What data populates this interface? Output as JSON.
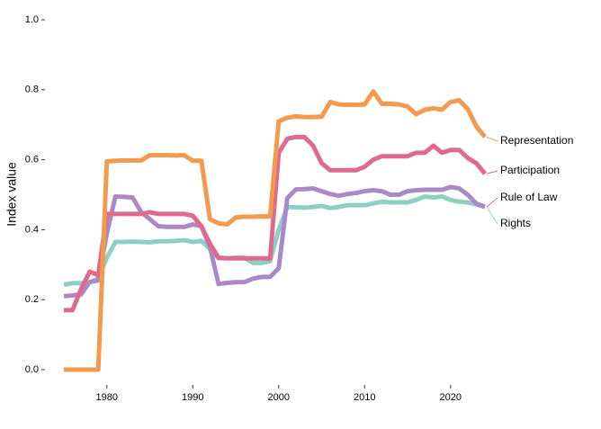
{
  "chart_data": {
    "type": "line",
    "y_label": "Index value",
    "x": [
      1975,
      1976,
      1977,
      1978,
      1979,
      1980,
      1981,
      1982,
      1983,
      1984,
      1985,
      1986,
      1987,
      1988,
      1989,
      1990,
      1991,
      1992,
      1993,
      1994,
      1995,
      1996,
      1997,
      1998,
      1999,
      2000,
      2001,
      2002,
      2003,
      2004,
      2005,
      2006,
      2007,
      2008,
      2009,
      2010,
      2011,
      2012,
      2013,
      2014,
      2015,
      2016,
      2017,
      2018,
      2019,
      2020,
      2021,
      2022,
      2023,
      2024
    ],
    "series": [
      {
        "name": "Representation",
        "color": "#f39a4f",
        "values": [
          0,
          0,
          0,
          0,
          0,
          0.595,
          0.597,
          0.598,
          0.598,
          0.598,
          0.613,
          0.613,
          0.613,
          0.612,
          0.613,
          0.597,
          0.597,
          0.43,
          0.418,
          0.415,
          0.435,
          0.437,
          0.437,
          0.438,
          0.438,
          0.71,
          0.72,
          0.724,
          0.722,
          0.722,
          0.723,
          0.765,
          0.758,
          0.757,
          0.757,
          0.758,
          0.795,
          0.76,
          0.76,
          0.758,
          0.752,
          0.73,
          0.743,
          0.747,
          0.743,
          0.765,
          0.77,
          0.745,
          0.695,
          0.665
        ]
      },
      {
        "name": "Participation",
        "color": "#df6a8d",
        "values": [
          0.17,
          0.17,
          0.23,
          0.28,
          0.27,
          0.445,
          0.445,
          0.445,
          0.445,
          0.445,
          0.45,
          0.445,
          0.445,
          0.445,
          0.445,
          0.44,
          0.41,
          0.36,
          0.32,
          0.318,
          0.318,
          0.318,
          0.318,
          0.318,
          0.318,
          0.62,
          0.66,
          0.665,
          0.665,
          0.64,
          0.59,
          0.57,
          0.57,
          0.57,
          0.57,
          0.58,
          0.6,
          0.61,
          0.61,
          0.61,
          0.61,
          0.62,
          0.62,
          0.64,
          0.62,
          0.628,
          0.628,
          0.605,
          0.59,
          0.56
        ]
      },
      {
        "name": "Rule of Law",
        "color": "#a98ac6",
        "values": [
          0.21,
          0.212,
          0.215,
          0.25,
          0.255,
          0.39,
          0.495,
          0.494,
          0.492,
          0.45,
          0.43,
          0.41,
          0.408,
          0.408,
          0.408,
          0.415,
          0.41,
          0.35,
          0.245,
          0.248,
          0.25,
          0.25,
          0.26,
          0.265,
          0.265,
          0.29,
          0.49,
          0.515,
          0.516,
          0.518,
          0.51,
          0.502,
          0.497,
          0.502,
          0.505,
          0.51,
          0.513,
          0.51,
          0.5,
          0.5,
          0.51,
          0.513,
          0.514,
          0.514,
          0.514,
          0.522,
          0.518,
          0.5,
          0.475,
          0.465
        ]
      },
      {
        "name": "Rights",
        "color": "#8dcfc2",
        "values": [
          0.243,
          0.247,
          0.247,
          0.25,
          0.26,
          0.32,
          0.365,
          0.365,
          0.366,
          0.365,
          0.364,
          0.367,
          0.367,
          0.368,
          0.37,
          0.365,
          0.368,
          0.345,
          0.318,
          0.318,
          0.32,
          0.32,
          0.305,
          0.305,
          0.31,
          0.4,
          0.465,
          0.464,
          0.463,
          0.465,
          0.468,
          0.462,
          0.465,
          0.47,
          0.47,
          0.47,
          0.475,
          0.48,
          0.478,
          0.478,
          0.478,
          0.485,
          0.495,
          0.492,
          0.495,
          0.485,
          0.48,
          0.478,
          0.472,
          0.465
        ]
      }
    ],
    "xlim": [
      1975,
      2024
    ],
    "xticks": [
      1980,
      1990,
      2000,
      2010,
      2020
    ],
    "ylim": [
      0,
      1
    ],
    "yticks": [
      {
        "value": 0,
        "label": "0.0"
      },
      0.2,
      0.4,
      0.6,
      0.8,
      {
        "value": 1,
        "label": "1.0"
      }
    ],
    "grid": false
  }
}
